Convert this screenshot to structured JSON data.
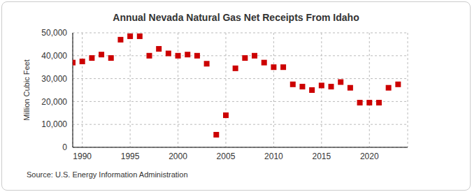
{
  "chart_data": {
    "type": "scatter",
    "title": "Annual Nevada Natural Gas Net Receipts From Idaho",
    "y_label": "Million Cubic Feet",
    "source": "Source: U.S. Energy Information Administration",
    "x": [
      1989,
      1990,
      1991,
      1992,
      1993,
      1994,
      1995,
      1996,
      1997,
      1998,
      1999,
      2000,
      2001,
      2002,
      2003,
      2004,
      2005,
      2006,
      2007,
      2008,
      2009,
      2010,
      2011,
      2012,
      2013,
      2014,
      2015,
      2016,
      2017,
      2018,
      2019,
      2020,
      2021,
      2022,
      2023
    ],
    "values": [
      37000,
      37500,
      39000,
      40500,
      39000,
      47000,
      48500,
      48500,
      40000,
      43000,
      41000,
      40000,
      40500,
      40000,
      36500,
      5500,
      14000,
      34500,
      39000,
      40000,
      37000,
      35000,
      35000,
      27500,
      26500,
      25000,
      27000,
      26500,
      28500,
      26000,
      19500,
      19500,
      19500,
      26000,
      27500
    ],
    "color": "#cc0000",
    "marker": "square",
    "xlim": [
      1989,
      2024
    ],
    "xticks": [
      1990,
      1995,
      2000,
      2005,
      2010,
      2015,
      2020
    ],
    "ylim": [
      0,
      50000
    ],
    "yticks": [
      0,
      {
        "value": 10000,
        "label": "10,000"
      },
      {
        "value": 20000,
        "label": "20,000"
      },
      {
        "value": 30000,
        "label": "30,000"
      },
      {
        "value": 40000,
        "label": "40,000"
      },
      {
        "value": 50000,
        "label": "50,000"
      }
    ],
    "grid": true
  }
}
